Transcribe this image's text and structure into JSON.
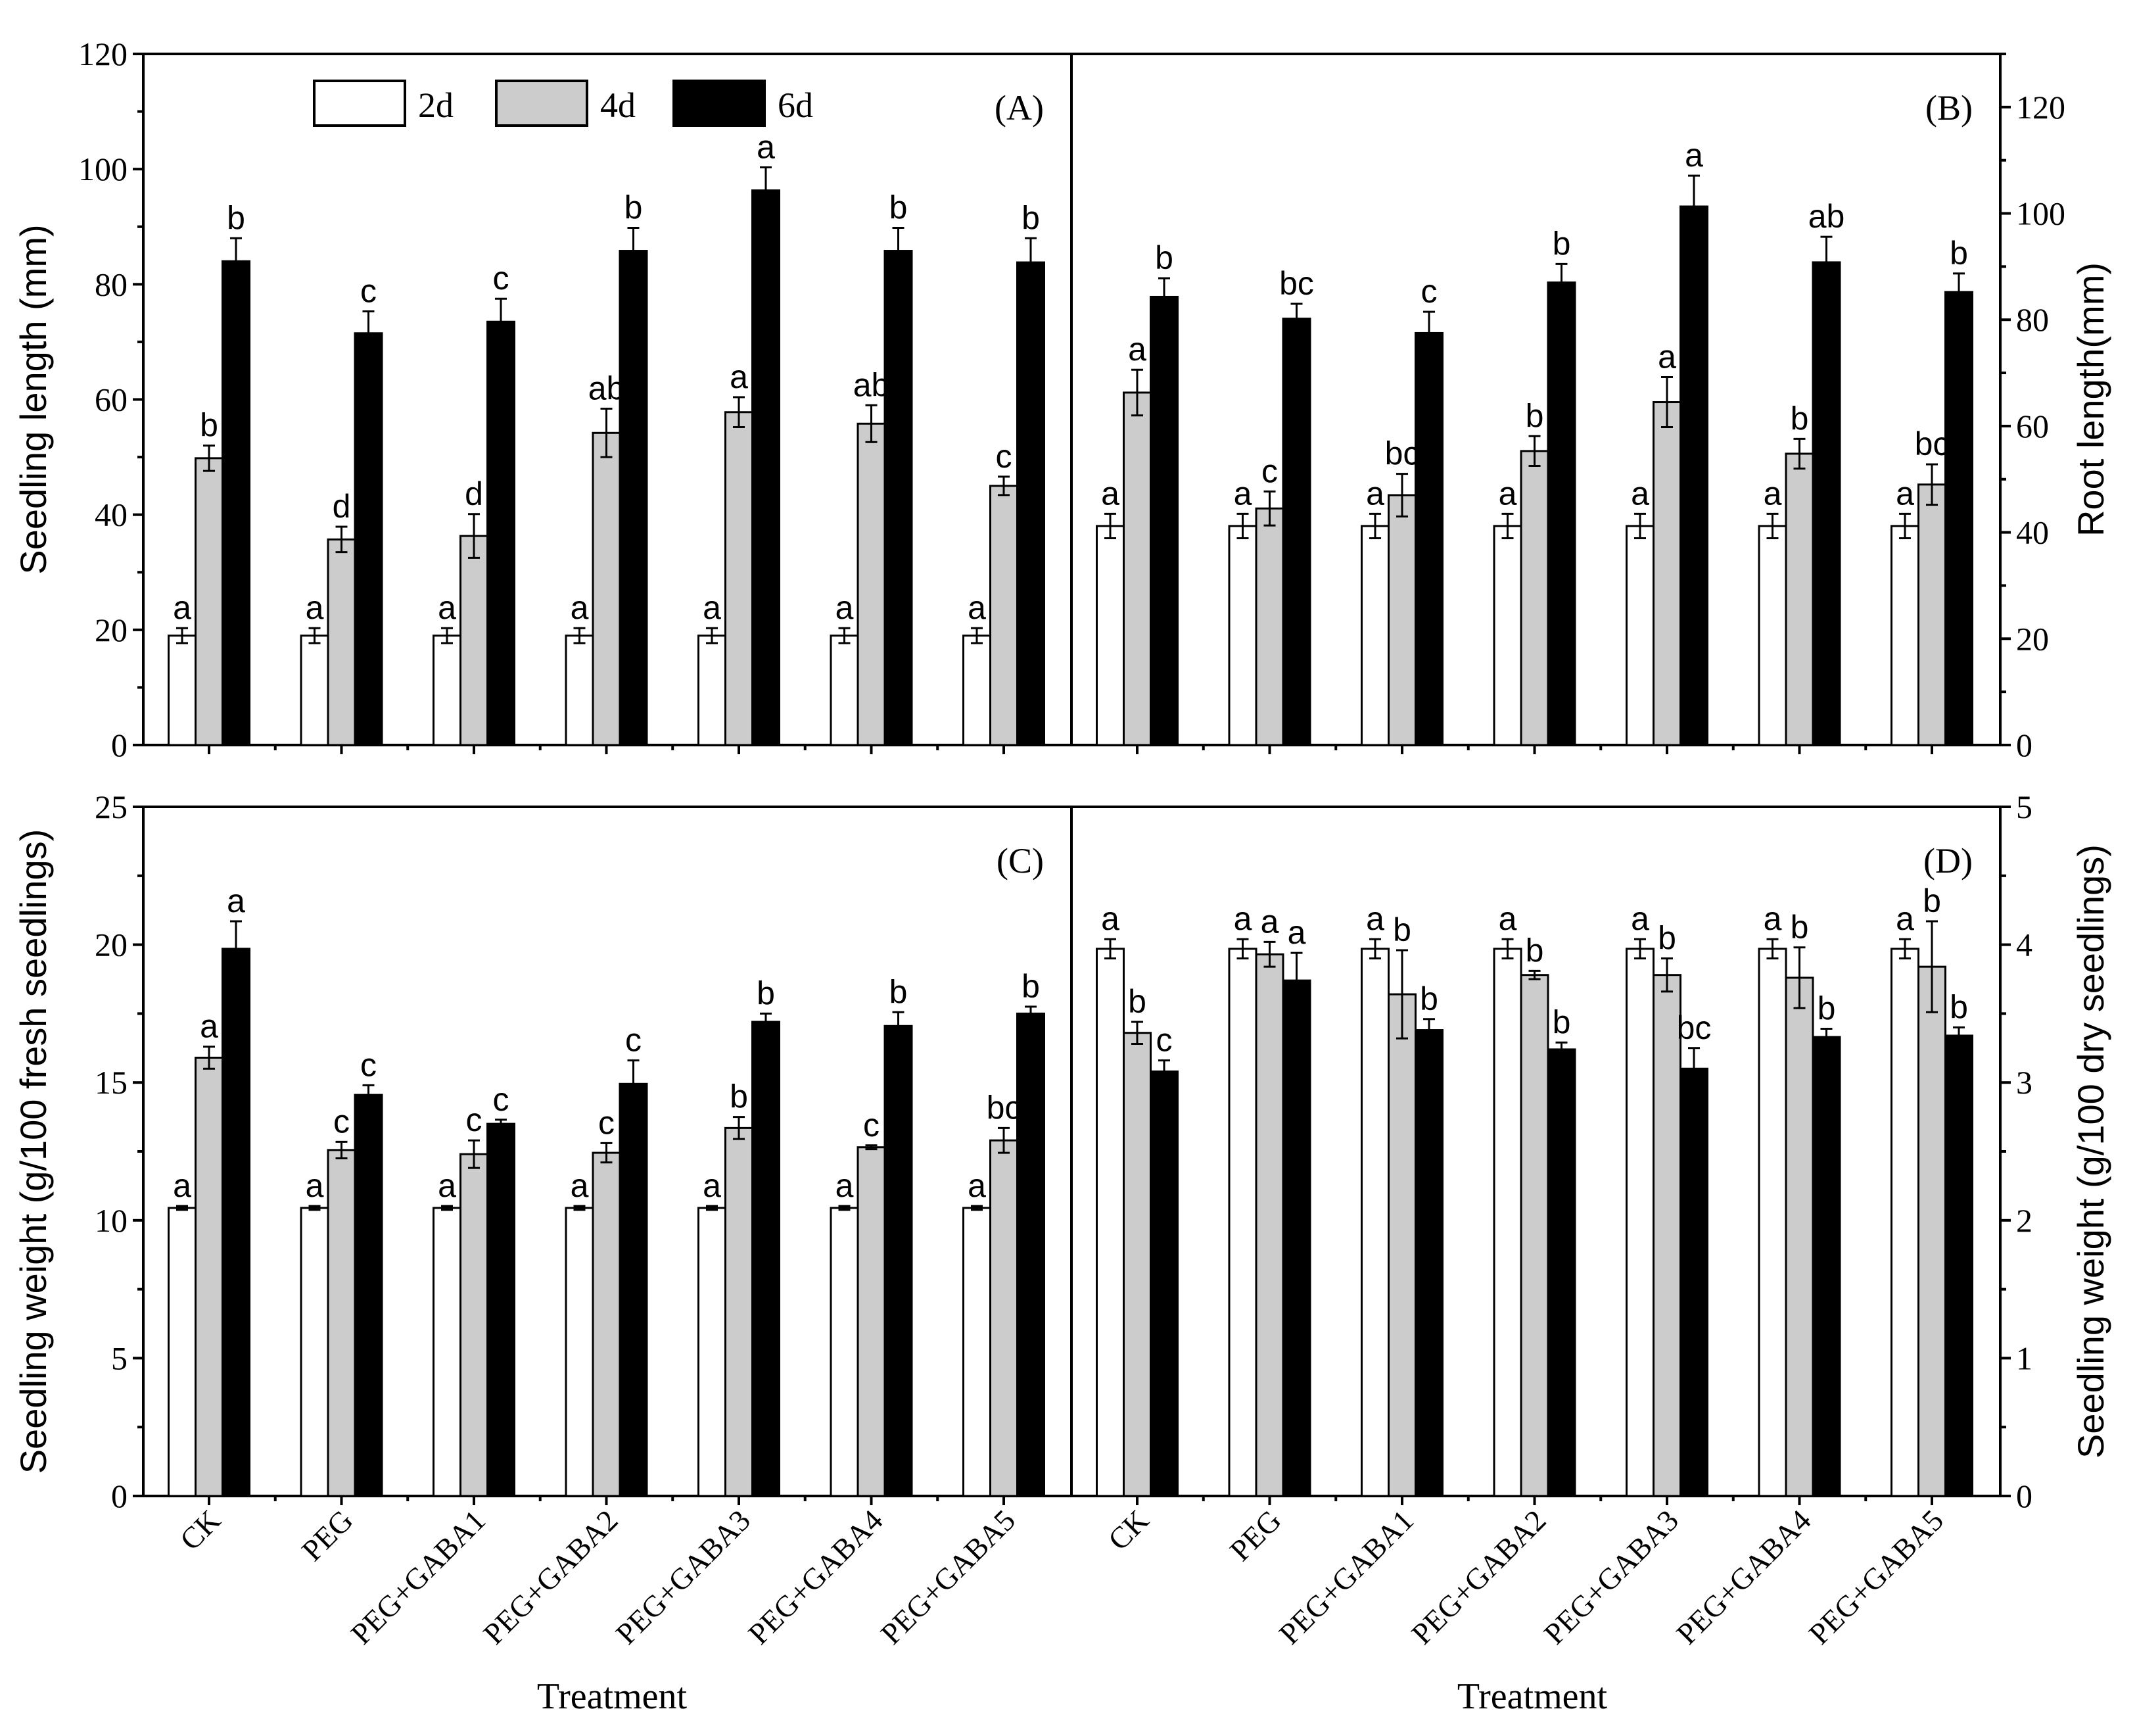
{
  "legend": [
    {
      "label": "2d",
      "color": "#ffffff"
    },
    {
      "label": "4d",
      "color": "#cccccc"
    },
    {
      "label": "6d",
      "color": "#000000"
    }
  ],
  "x_axis_title": "Treatment",
  "categories": [
    "CK",
    "PEG",
    "PEG+GABA1",
    "PEG+GABA2",
    "PEG+GABA3",
    "PEG+GABA4",
    "PEG+GABA5"
  ],
  "chart_data": [
    {
      "id": "A",
      "panel_label": "(A)",
      "type": "bar",
      "ylabel": "Seedling length (mm)",
      "ylim": [
        0,
        120
      ],
      "yticks": [
        0,
        20,
        40,
        60,
        80,
        100,
        120
      ],
      "xlabel": "Treatment",
      "categories": [
        "CK",
        "PEG",
        "PEG+GABA1",
        "PEG+GABA2",
        "PEG+GABA3",
        "PEG+GABA4",
        "PEG+GABA5"
      ],
      "series": [
        {
          "name": "2d",
          "values": [
            19,
            19,
            19,
            19,
            19,
            19,
            19
          ],
          "errors": [
            1.3,
            1.3,
            1.3,
            1.3,
            1.3,
            1.3,
            1.3
          ],
          "letters": [
            "a",
            "a",
            "a",
            "a",
            "a",
            "a",
            "a"
          ]
        },
        {
          "name": "4d",
          "values": [
            49.8,
            35.7,
            36.3,
            54.2,
            57.8,
            55.8,
            45
          ],
          "errors": [
            2.2,
            2.2,
            3.8,
            4.2,
            2.6,
            3.2,
            1.6
          ],
          "letters": [
            "b",
            "d",
            "d",
            "ab",
            "a",
            "ab",
            "c"
          ]
        },
        {
          "name": "6d",
          "values": [
            84,
            71.5,
            73.5,
            85.8,
            96.3,
            85.8,
            83.8
          ],
          "errors": [
            4,
            3.8,
            4,
            4,
            4,
            4,
            4.2
          ],
          "letters": [
            "b",
            "c",
            "c",
            "b",
            "a",
            "b",
            "b"
          ]
        }
      ]
    },
    {
      "id": "B",
      "panel_label": "(B)",
      "type": "bar",
      "ylabel": "Root length(mm)",
      "ylim": [
        0,
        130
      ],
      "yticks": [
        0,
        20,
        40,
        60,
        80,
        100,
        120
      ],
      "y_axis_side": "right",
      "xlabel": "Treatment",
      "categories": [
        "CK",
        "PEG",
        "PEG+GABA1",
        "PEG+GABA2",
        "PEG+GABA3",
        "PEG+GABA4",
        "PEG+GABA5"
      ],
      "series": [
        {
          "name": "2d",
          "values": [
            41.2,
            41.2,
            41.2,
            41.2,
            41.2,
            41.2,
            41.2
          ],
          "errors": [
            2.3,
            2.3,
            2.3,
            2.3,
            2.3,
            2.3,
            2.3
          ],
          "letters": [
            "a",
            "a",
            "a",
            "a",
            "a",
            "a",
            "a"
          ]
        },
        {
          "name": "4d",
          "values": [
            66.3,
            44.5,
            47,
            55.3,
            64.5,
            54.8,
            49
          ],
          "errors": [
            4.3,
            3.2,
            4,
            2.8,
            4.7,
            2.8,
            3.8
          ],
          "letters": [
            "a",
            "c",
            "bc",
            "b",
            "a",
            "b",
            "bc"
          ]
        },
        {
          "name": "6d",
          "values": [
            84.3,
            80.2,
            77.5,
            87,
            101.3,
            90.8,
            85.2
          ],
          "errors": [
            3.5,
            2.8,
            4,
            3.5,
            5.8,
            4.8,
            3.5
          ],
          "letters": [
            "b",
            "bc",
            "c",
            "b",
            "a",
            "ab",
            "b"
          ]
        }
      ]
    },
    {
      "id": "C",
      "panel_label": "(C)",
      "type": "bar",
      "ylabel": "Seedling weight (g/100 fresh seedlings)",
      "ylim": [
        0,
        25
      ],
      "yticks": [
        0,
        5,
        10,
        15,
        20,
        25
      ],
      "xlabel": "Treatment",
      "categories": [
        "CK",
        "PEG",
        "PEG+GABA1",
        "PEG+GABA2",
        "PEG+GABA3",
        "PEG+GABA4",
        "PEG+GABA5"
      ],
      "series": [
        {
          "name": "2d",
          "values": [
            10.45,
            10.45,
            10.45,
            10.45,
            10.45,
            10.45,
            10.45
          ],
          "errors": [
            0.07,
            0.07,
            0.07,
            0.07,
            0.07,
            0.07,
            0.07
          ],
          "letters": [
            "a",
            "a",
            "a",
            "a",
            "a",
            "a",
            "a"
          ]
        },
        {
          "name": "4d",
          "values": [
            15.9,
            12.55,
            12.4,
            12.45,
            13.35,
            12.65,
            12.9
          ],
          "errors": [
            0.4,
            0.3,
            0.5,
            0.35,
            0.4,
            0.07,
            0.45
          ],
          "letters": [
            "a",
            "c",
            "c",
            "c",
            "b",
            "c",
            "bc"
          ]
        },
        {
          "name": "6d",
          "values": [
            19.85,
            14.55,
            13.5,
            14.95,
            17.2,
            17.05,
            17.5
          ],
          "errors": [
            1,
            0.35,
            0.15,
            0.85,
            0.3,
            0.5,
            0.25
          ],
          "letters": [
            "a",
            "c",
            "c",
            "c",
            "b",
            "b",
            "b"
          ]
        }
      ]
    },
    {
      "id": "D",
      "panel_label": "(D)",
      "type": "bar",
      "ylabel": "Seedling weight (g/100 dry seedlings)",
      "ylim": [
        0,
        5
      ],
      "yticks": [
        0,
        1,
        2,
        3,
        4,
        5
      ],
      "y_axis_side": "right",
      "xlabel": "Treatment",
      "categories": [
        "CK",
        "PEG",
        "PEG+GABA1",
        "PEG+GABA2",
        "PEG+GABA3",
        "PEG+GABA4",
        "PEG+GABA5"
      ],
      "series": [
        {
          "name": "2d",
          "values": [
            3.97,
            3.97,
            3.97,
            3.97,
            3.97,
            3.97,
            3.97
          ],
          "errors": [
            0.07,
            0.07,
            0.07,
            0.07,
            0.07,
            0.07,
            0.07
          ],
          "letters": [
            "a",
            "a",
            "a",
            "a",
            "a",
            "a",
            "a"
          ]
        },
        {
          "name": "4d",
          "values": [
            3.36,
            3.93,
            3.64,
            3.78,
            3.78,
            3.76,
            3.84
          ],
          "errors": [
            0.08,
            0.09,
            0.32,
            0.03,
            0.12,
            0.22,
            0.33
          ],
          "letters": [
            "b",
            "a",
            "b",
            "b",
            "b",
            "b",
            "b"
          ]
        },
        {
          "name": "6d",
          "values": [
            3.08,
            3.74,
            3.38,
            3.24,
            3.1,
            3.33,
            3.34
          ],
          "errors": [
            0.08,
            0.2,
            0.08,
            0.05,
            0.15,
            0.06,
            0.06
          ],
          "letters": [
            "c",
            "a",
            "b",
            "b",
            "bc",
            "b",
            "b"
          ]
        }
      ]
    }
  ]
}
